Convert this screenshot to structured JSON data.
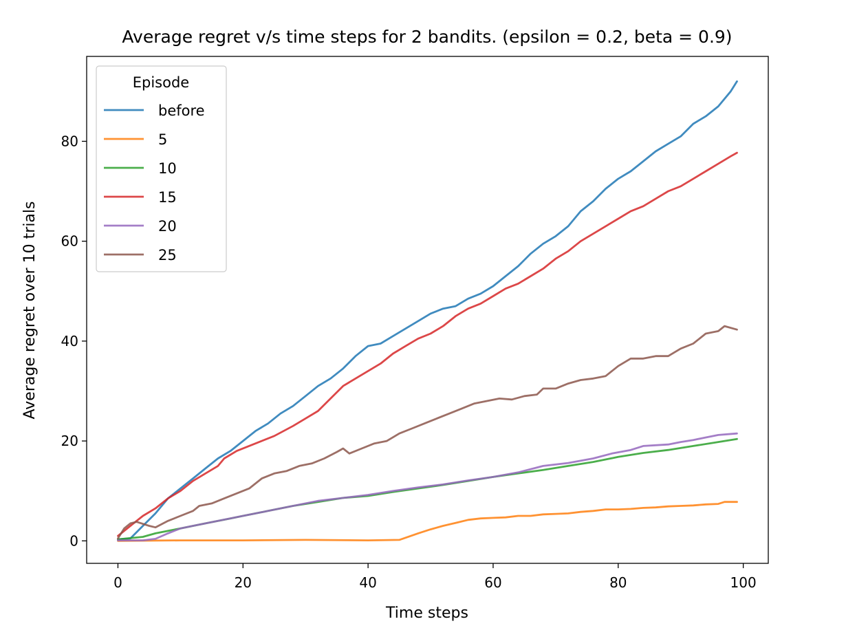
{
  "chart_data": {
    "type": "line",
    "title": "Average regret v/s time steps for 2 bandits. (epsilon = 0.2, beta = 0.9)",
    "xlabel": "Time steps",
    "ylabel": "Average regret over 10 trials",
    "xlim": [
      -5,
      104
    ],
    "ylim": [
      -4.5,
      97
    ],
    "xticks": [
      0,
      20,
      40,
      60,
      80,
      100
    ],
    "yticks": [
      0,
      20,
      40,
      60,
      80
    ],
    "grid": false,
    "legend": {
      "title": "Episode",
      "placement": "top-left"
    },
    "series": [
      {
        "name": "before",
        "color": "#1f77b4",
        "points": [
          [
            0,
            0.3
          ],
          [
            2,
            0.5
          ],
          [
            4,
            3
          ],
          [
            6,
            5.5
          ],
          [
            8,
            8.5
          ],
          [
            10,
            10.5
          ],
          [
            12,
            12.5
          ],
          [
            14,
            14.5
          ],
          [
            16,
            16.5
          ],
          [
            18,
            18
          ],
          [
            20,
            20
          ],
          [
            22,
            22
          ],
          [
            24,
            23.5
          ],
          [
            26,
            25.5
          ],
          [
            28,
            27
          ],
          [
            30,
            29
          ],
          [
            32,
            31
          ],
          [
            34,
            32.5
          ],
          [
            36,
            34.5
          ],
          [
            38,
            37
          ],
          [
            40,
            39
          ],
          [
            42,
            39.5
          ],
          [
            44,
            41
          ],
          [
            46,
            42.5
          ],
          [
            48,
            44
          ],
          [
            50,
            45.5
          ],
          [
            52,
            46.5
          ],
          [
            54,
            47
          ],
          [
            56,
            48.5
          ],
          [
            58,
            49.5
          ],
          [
            60,
            51
          ],
          [
            62,
            53
          ],
          [
            64,
            55
          ],
          [
            66,
            57.5
          ],
          [
            68,
            59.5
          ],
          [
            70,
            61
          ],
          [
            72,
            63
          ],
          [
            74,
            66
          ],
          [
            76,
            68
          ],
          [
            78,
            70.5
          ],
          [
            80,
            72.5
          ],
          [
            82,
            74
          ],
          [
            84,
            76
          ],
          [
            86,
            78
          ],
          [
            88,
            79.5
          ],
          [
            90,
            81
          ],
          [
            92,
            83.5
          ],
          [
            94,
            85
          ],
          [
            96,
            87
          ],
          [
            98,
            90
          ],
          [
            99,
            92
          ]
        ]
      },
      {
        "name": "5",
        "color": "#ff7f0e",
        "points": [
          [
            0,
            0
          ],
          [
            10,
            0.1
          ],
          [
            20,
            0.1
          ],
          [
            30,
            0.2
          ],
          [
            40,
            0.1
          ],
          [
            45,
            0.2
          ],
          [
            48,
            1.5
          ],
          [
            50,
            2.3
          ],
          [
            52,
            3
          ],
          [
            54,
            3.6
          ],
          [
            56,
            4.2
          ],
          [
            58,
            4.5
          ],
          [
            60,
            4.6
          ],
          [
            62,
            4.7
          ],
          [
            64,
            5
          ],
          [
            66,
            5
          ],
          [
            68,
            5.3
          ],
          [
            70,
            5.4
          ],
          [
            72,
            5.5
          ],
          [
            74,
            5.8
          ],
          [
            76,
            6
          ],
          [
            78,
            6.3
          ],
          [
            80,
            6.3
          ],
          [
            82,
            6.4
          ],
          [
            84,
            6.6
          ],
          [
            86,
            6.7
          ],
          [
            88,
            6.9
          ],
          [
            90,
            7
          ],
          [
            92,
            7.1
          ],
          [
            94,
            7.3
          ],
          [
            96,
            7.4
          ],
          [
            97,
            7.8
          ],
          [
            99,
            7.8
          ]
        ]
      },
      {
        "name": "10",
        "color": "#2ca02c",
        "points": [
          [
            0,
            0.3
          ],
          [
            4,
            0.8
          ],
          [
            6,
            1.5
          ],
          [
            10,
            2.5
          ],
          [
            14,
            3.5
          ],
          [
            18,
            4.5
          ],
          [
            20,
            5
          ],
          [
            24,
            6
          ],
          [
            28,
            7
          ],
          [
            32,
            7.8
          ],
          [
            36,
            8.6
          ],
          [
            40,
            9
          ],
          [
            44,
            9.8
          ],
          [
            48,
            10.5
          ],
          [
            52,
            11.2
          ],
          [
            56,
            12
          ],
          [
            60,
            12.8
          ],
          [
            64,
            13.5
          ],
          [
            68,
            14.2
          ],
          [
            72,
            15
          ],
          [
            76,
            15.8
          ],
          [
            80,
            16.8
          ],
          [
            84,
            17.6
          ],
          [
            88,
            18.2
          ],
          [
            92,
            19
          ],
          [
            96,
            19.8
          ],
          [
            99,
            20.4
          ]
        ]
      },
      {
        "name": "15",
        "color": "#d62728",
        "points": [
          [
            0,
            1
          ],
          [
            2,
            3
          ],
          [
            4,
            5
          ],
          [
            6,
            6.5
          ],
          [
            8,
            8.5
          ],
          [
            10,
            10
          ],
          [
            12,
            12
          ],
          [
            14,
            13.5
          ],
          [
            16,
            15
          ],
          [
            17,
            16.5
          ],
          [
            19,
            18
          ],
          [
            22,
            19.5
          ],
          [
            25,
            21
          ],
          [
            28,
            23
          ],
          [
            30,
            24.5
          ],
          [
            32,
            26
          ],
          [
            34,
            28.5
          ],
          [
            36,
            31
          ],
          [
            38,
            32.5
          ],
          [
            40,
            34
          ],
          [
            42,
            35.5
          ],
          [
            44,
            37.5
          ],
          [
            46,
            39
          ],
          [
            48,
            40.5
          ],
          [
            50,
            41.5
          ],
          [
            52,
            43
          ],
          [
            54,
            45
          ],
          [
            56,
            46.5
          ],
          [
            58,
            47.5
          ],
          [
            60,
            49
          ],
          [
            62,
            50.5
          ],
          [
            64,
            51.5
          ],
          [
            66,
            53
          ],
          [
            68,
            54.5
          ],
          [
            70,
            56.5
          ],
          [
            72,
            58
          ],
          [
            74,
            60
          ],
          [
            76,
            61.5
          ],
          [
            78,
            63
          ],
          [
            80,
            64.5
          ],
          [
            82,
            66
          ],
          [
            84,
            67
          ],
          [
            86,
            68.5
          ],
          [
            88,
            70
          ],
          [
            90,
            71
          ],
          [
            92,
            72.5
          ],
          [
            94,
            74
          ],
          [
            96,
            75.5
          ],
          [
            98,
            77
          ],
          [
            99,
            77.7
          ]
        ]
      },
      {
        "name": "20",
        "color": "#9467bd",
        "points": [
          [
            0,
            0.1
          ],
          [
            4,
            0.1
          ],
          [
            6,
            0.4
          ],
          [
            8,
            1.5
          ],
          [
            10,
            2.5
          ],
          [
            12,
            3
          ],
          [
            16,
            4
          ],
          [
            20,
            5
          ],
          [
            24,
            6
          ],
          [
            28,
            7
          ],
          [
            32,
            8
          ],
          [
            36,
            8.6
          ],
          [
            40,
            9.2
          ],
          [
            44,
            10
          ],
          [
            48,
            10.7
          ],
          [
            52,
            11.3
          ],
          [
            56,
            12.1
          ],
          [
            60,
            12.8
          ],
          [
            64,
            13.7
          ],
          [
            68,
            15
          ],
          [
            72,
            15.6
          ],
          [
            76,
            16.5
          ],
          [
            79,
            17.5
          ],
          [
            82,
            18.2
          ],
          [
            84,
            19
          ],
          [
            88,
            19.3
          ],
          [
            90,
            19.8
          ],
          [
            92,
            20.2
          ],
          [
            94,
            20.7
          ],
          [
            96,
            21.2
          ],
          [
            99,
            21.5
          ]
        ]
      },
      {
        "name": "25",
        "color": "#8c564b",
        "points": [
          [
            0,
            0.5
          ],
          [
            1,
            2.5
          ],
          [
            2,
            3.5
          ],
          [
            3,
            3.8
          ],
          [
            5,
            3
          ],
          [
            6,
            2.7
          ],
          [
            8,
            4
          ],
          [
            10,
            5
          ],
          [
            12,
            6
          ],
          [
            13,
            7
          ],
          [
            15,
            7.5
          ],
          [
            17,
            8.5
          ],
          [
            19,
            9.5
          ],
          [
            21,
            10.5
          ],
          [
            23,
            12.5
          ],
          [
            25,
            13.5
          ],
          [
            27,
            14
          ],
          [
            29,
            15
          ],
          [
            31,
            15.5
          ],
          [
            33,
            16.5
          ],
          [
            35,
            17.8
          ],
          [
            36,
            18.5
          ],
          [
            37,
            17.5
          ],
          [
            39,
            18.5
          ],
          [
            41,
            19.5
          ],
          [
            43,
            20
          ],
          [
            45,
            21.5
          ],
          [
            47,
            22.5
          ],
          [
            49,
            23.5
          ],
          [
            51,
            24.5
          ],
          [
            53,
            25.5
          ],
          [
            55,
            26.5
          ],
          [
            57,
            27.5
          ],
          [
            59,
            28
          ],
          [
            61,
            28.5
          ],
          [
            63,
            28.3
          ],
          [
            65,
            29
          ],
          [
            67,
            29.3
          ],
          [
            68,
            30.5
          ],
          [
            70,
            30.5
          ],
          [
            72,
            31.5
          ],
          [
            74,
            32.2
          ],
          [
            76,
            32.5
          ],
          [
            78,
            33
          ],
          [
            80,
            35
          ],
          [
            82,
            36.5
          ],
          [
            84,
            36.5
          ],
          [
            86,
            37
          ],
          [
            88,
            37
          ],
          [
            90,
            38.5
          ],
          [
            92,
            39.5
          ],
          [
            94,
            41.5
          ],
          [
            96,
            42
          ],
          [
            97,
            43
          ],
          [
            99,
            42.3
          ]
        ]
      }
    ]
  }
}
